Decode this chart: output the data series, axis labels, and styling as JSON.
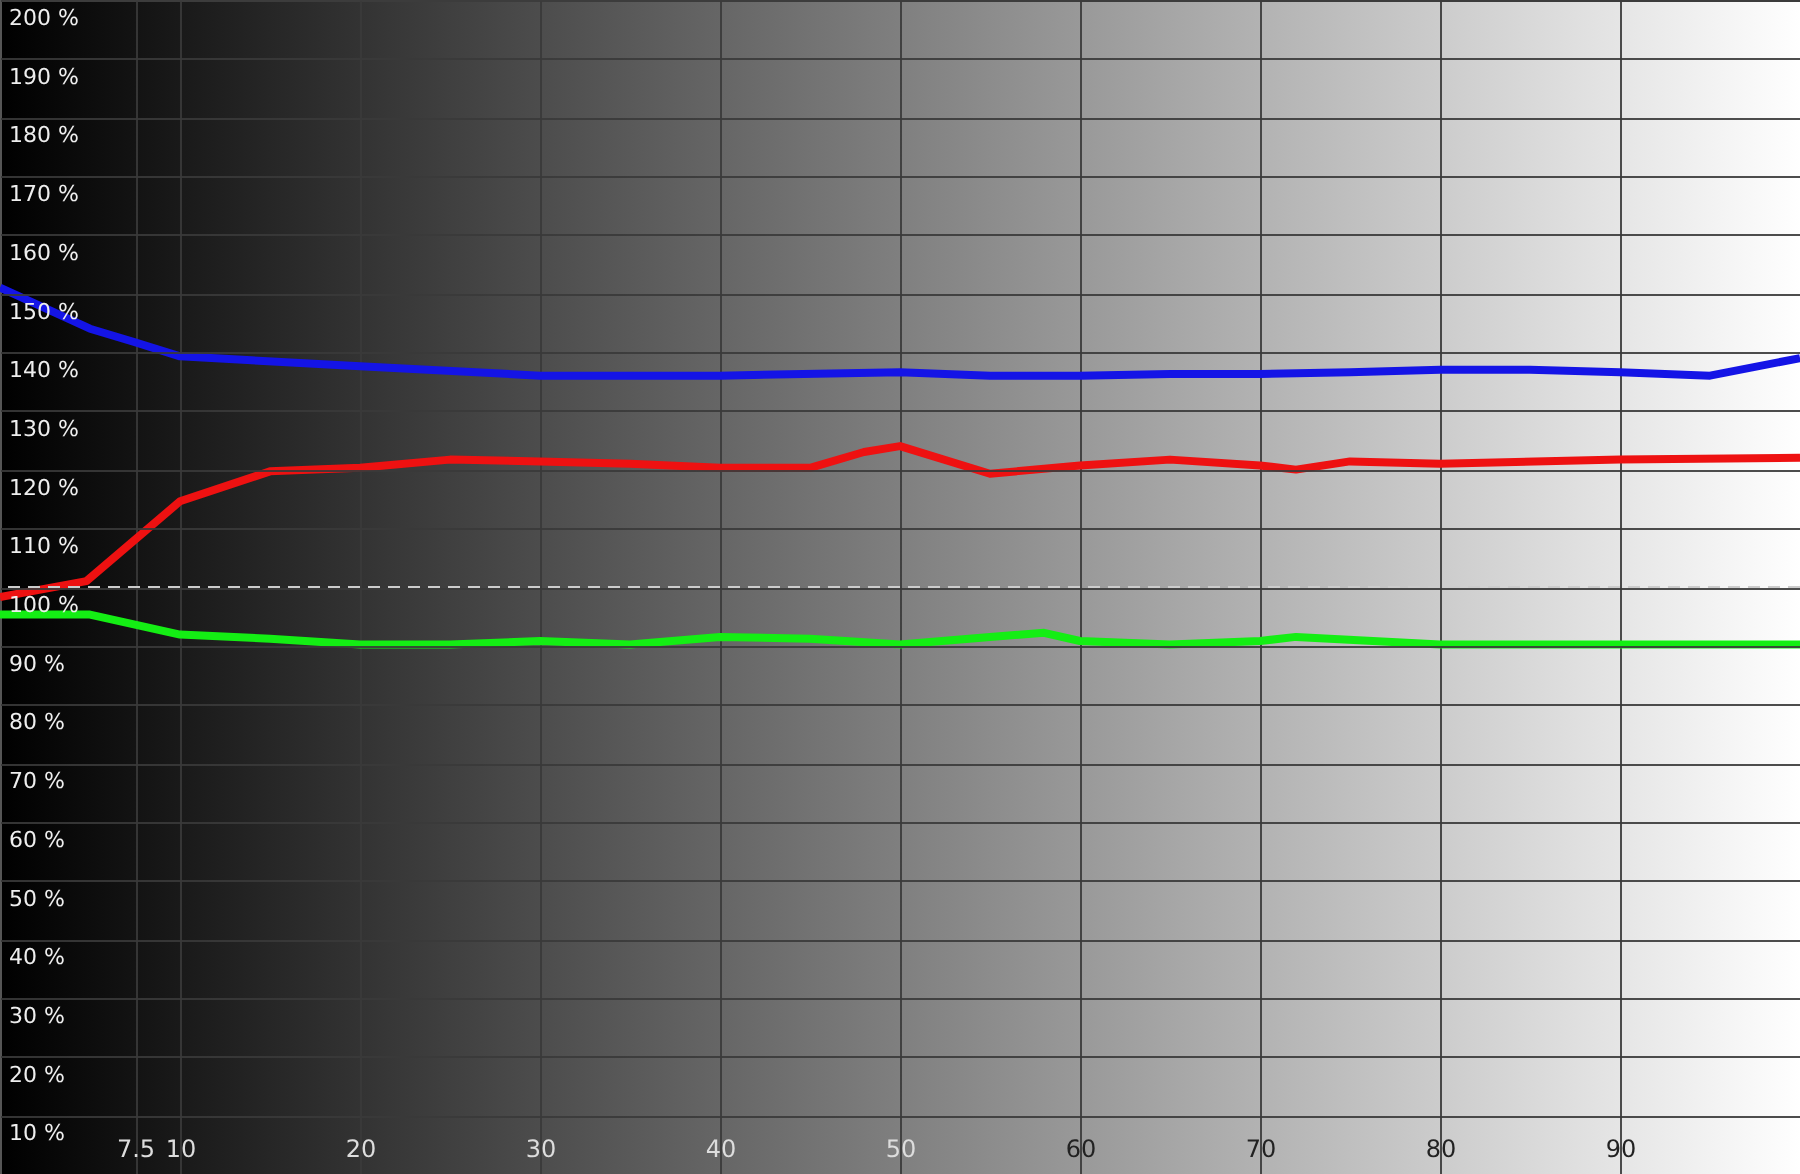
{
  "chart_data": {
    "type": "line",
    "xlim": [
      0,
      100
    ],
    "ylim": [
      0,
      200
    ],
    "xticks": [
      7.5,
      10,
      20,
      30,
      40,
      50,
      60,
      70,
      80,
      90
    ],
    "yticks": [
      {
        "value": 10,
        "label": "10 %"
      },
      {
        "value": 20,
        "label": "20 %"
      },
      {
        "value": 30,
        "label": "30 %"
      },
      {
        "value": 40,
        "label": "40 %"
      },
      {
        "value": 50,
        "label": "50 %"
      },
      {
        "value": 60,
        "label": "60 %"
      },
      {
        "value": 70,
        "label": "70 %"
      },
      {
        "value": 80,
        "label": "80 %"
      },
      {
        "value": 90,
        "label": "90 %"
      },
      {
        "value": 100,
        "label": "100 %"
      },
      {
        "value": 110,
        "label": "110 %"
      },
      {
        "value": 120,
        "label": "120 %"
      },
      {
        "value": 130,
        "label": "130 %"
      },
      {
        "value": 140,
        "label": "140 %"
      },
      {
        "value": 150,
        "label": "150 %"
      },
      {
        "value": 160,
        "label": "160 %"
      },
      {
        "value": 170,
        "label": "170 %"
      },
      {
        "value": 180,
        "label": "180 %"
      },
      {
        "value": 190,
        "label": "190 %"
      },
      {
        "value": 200,
        "label": "200 %"
      }
    ],
    "grid": true,
    "marker": "none",
    "line_style": "solid",
    "ref_lines": [
      {
        "axis": "y",
        "value": 100,
        "label": null,
        "color": "#cccccc",
        "line_style": "dashed"
      }
    ],
    "series": [
      {
        "color": "#1414e6",
        "x": [
          0,
          5,
          7.5,
          10,
          20,
          30,
          40,
          50,
          55,
          60,
          65,
          70,
          75,
          80,
          85,
          90,
          95,
          100
        ],
        "values": [
          151,
          144,
          141.7,
          139.3,
          137.6,
          136,
          136,
          136.6,
          136,
          136,
          136.3,
          136.3,
          136.6,
          137,
          137,
          136.6,
          136,
          139
        ]
      },
      {
        "color": "#ee1111",
        "x": [
          0,
          4.8,
          10,
          15,
          20,
          25,
          30,
          35,
          40,
          45,
          48,
          50,
          55,
          60,
          65,
          70,
          72,
          75,
          80,
          90,
          100
        ],
        "values": [
          98.3,
          101,
          114.6,
          119.7,
          120.3,
          121.7,
          121.4,
          121,
          120.3,
          120.3,
          123,
          124,
          119.3,
          120.7,
          121.7,
          120.7,
          120,
          121.4,
          121,
          121.7,
          122
        ]
      },
      {
        "color": "#14ee14",
        "x": [
          0,
          5,
          10,
          15,
          20,
          25,
          30,
          35,
          40,
          45,
          50,
          55,
          58,
          60,
          65,
          70,
          72,
          80,
          90,
          100
        ],
        "values": [
          95.3,
          95.3,
          91.9,
          91.2,
          90.2,
          90.2,
          90.8,
          90.2,
          91.5,
          91.2,
          90.2,
          91.5,
          92.2,
          90.8,
          90.2,
          90.8,
          91.5,
          90.2,
          90.2,
          90.2
        ]
      }
    ]
  }
}
